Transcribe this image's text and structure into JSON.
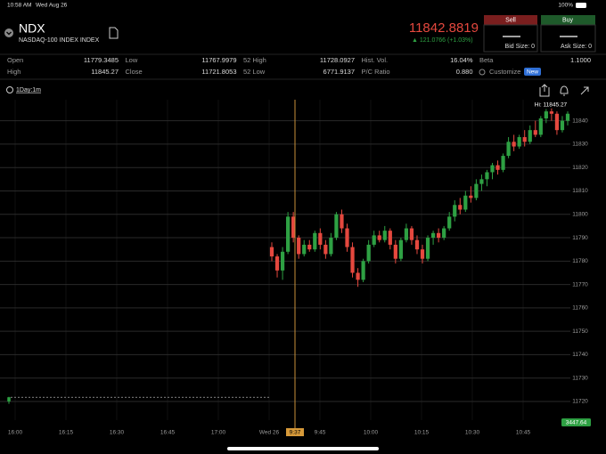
{
  "status_bar": {
    "time": "10:58 AM",
    "date": "Wed Aug 26",
    "battery": "100%"
  },
  "header": {
    "symbol": "NDX",
    "name": "NASDAQ-100 INDEX INDEX",
    "price": "11842.8819",
    "change": "▲ 121.0766 (+1.03%)"
  },
  "trade": {
    "sell": "Sell",
    "buy": "Buy",
    "bid_size": "Bid Size: 0",
    "ask_size": "Ask Size: 0"
  },
  "stats": [
    {
      "label": "Open",
      "value": "11779.3485"
    },
    {
      "label": "Low",
      "value": "11767.9979"
    },
    {
      "label": "52 High",
      "value": "11728.0927"
    },
    {
      "label": "Hist. Vol.",
      "value": "16.04%"
    },
    {
      "label": "Beta",
      "value": "1.1000"
    },
    {
      "label": "High",
      "value": "11845.27"
    },
    {
      "label": "Close",
      "value": "11721.8053"
    },
    {
      "label": "52 Low",
      "value": "6771.9137"
    },
    {
      "label": "P/C Ratio",
      "value": "0.880"
    }
  ],
  "customize": {
    "label": "Customize",
    "badge": "New"
  },
  "period": "1Day:1m",
  "chart_data": {
    "type": "candlestick",
    "high_label": "Hi: 11845.27",
    "crosshair_label": "9:37",
    "price_tag": "3447.64",
    "x_labels": [
      "16:00",
      "16:15",
      "16:30",
      "16:45",
      "17:00",
      "Wed 26",
      "9:45",
      "10:00",
      "10:15",
      "10:30",
      "10:45"
    ],
    "ylim": [
      11712,
      11849
    ],
    "yticks": [
      11720,
      11730,
      11740,
      11750,
      11760,
      11770,
      11780,
      11790,
      11800,
      11810,
      11820,
      11830,
      11840
    ],
    "up_color": "#2ea043",
    "down_color": "#e5483e",
    "prev_close": 11721.8053,
    "prev_candle": [
      11720,
      11722,
      11719,
      11721.8
    ],
    "candles": [
      [
        11786,
        11788,
        11780,
        11782
      ],
      [
        11782,
        11783,
        11773,
        11776
      ],
      [
        11776,
        11786,
        11772,
        11784
      ],
      [
        11784,
        11801,
        11783,
        11799
      ],
      [
        11799,
        11801,
        11788,
        11790
      ],
      [
        11790,
        11791,
        11781,
        11783
      ],
      [
        11783,
        11789,
        11782,
        11787
      ],
      [
        11787,
        11789,
        11784,
        11785
      ],
      [
        11785,
        11793,
        11784,
        11792
      ],
      [
        11792,
        11794,
        11785,
        11787
      ],
      [
        11787,
        11789,
        11781,
        11783
      ],
      [
        11783,
        11792,
        11782,
        11790
      ],
      [
        11790,
        11801,
        11789,
        11800
      ],
      [
        11800,
        11802,
        11792,
        11794
      ],
      [
        11794,
        11796,
        11784,
        11786
      ],
      [
        11786,
        11788,
        11773,
        11775
      ],
      [
        11775,
        11777,
        11769,
        11772
      ],
      [
        11772,
        11781,
        11771,
        11780
      ],
      [
        11780,
        11789,
        11779,
        11787
      ],
      [
        11787,
        11793,
        11786,
        11791
      ],
      [
        11791,
        11793,
        11788,
        11789
      ],
      [
        11789,
        11795,
        11788,
        11793
      ],
      [
        11793,
        11794,
        11785,
        11787
      ],
      [
        11787,
        11789,
        11779,
        11781
      ],
      [
        11781,
        11790,
        11780,
        11789
      ],
      [
        11789,
        11796,
        11788,
        11794
      ],
      [
        11794,
        11795,
        11787,
        11789
      ],
      [
        11789,
        11791,
        11783,
        11785
      ],
      [
        11785,
        11787,
        11779,
        11781
      ],
      [
        11781,
        11791,
        11780,
        11790
      ],
      [
        11790,
        11793,
        11787,
        11792
      ],
      [
        11792,
        11794,
        11788,
        11790
      ],
      [
        11790,
        11795,
        11789,
        11794
      ],
      [
        11794,
        11801,
        11793,
        11799
      ],
      [
        11799,
        11806,
        11797,
        11804
      ],
      [
        11804,
        11807,
        11800,
        11802
      ],
      [
        11802,
        11810,
        11801,
        11808
      ],
      [
        11808,
        11812,
        11805,
        11807
      ],
      [
        11807,
        11815,
        11806,
        11813
      ],
      [
        11813,
        11817,
        11810,
        11815
      ],
      [
        11815,
        11819,
        11812,
        11818
      ],
      [
        11818,
        11822,
        11815,
        11821
      ],
      [
        11821,
        11823,
        11817,
        11819
      ],
      [
        11819,
        11826,
        11818,
        11825
      ],
      [
        11825,
        11833,
        11824,
        11831
      ],
      [
        11831,
        11834,
        11827,
        11829
      ],
      [
        11829,
        11834,
        11828,
        11833
      ],
      [
        11833,
        11836,
        11829,
        11831
      ],
      [
        11831,
        11838,
        11830,
        11836
      ],
      [
        11836,
        11840,
        11833,
        11834
      ],
      [
        11834,
        11842,
        11833,
        11841
      ],
      [
        11841,
        11845,
        11839,
        11844
      ],
      [
        11844,
        11845.27,
        11840,
        11843
      ],
      [
        11843,
        11844,
        11834,
        11836
      ],
      [
        11836,
        11842,
        11835,
        11840
      ],
      [
        11840,
        11844,
        11838,
        11843
      ]
    ]
  }
}
